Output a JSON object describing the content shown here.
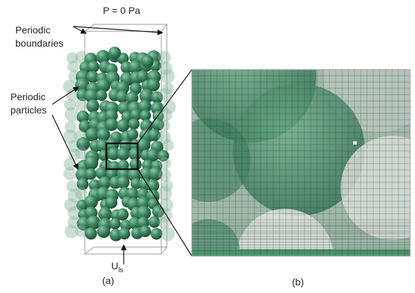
{
  "labels": {
    "pressure": "P = 0 Pa",
    "boundaries": [
      "Periodic",
      "boundaries"
    ],
    "particles": [
      "Periodic",
      "particles"
    ],
    "velocity": {
      "symbol": "U",
      "subscript": "ls"
    },
    "panels": [
      "(a)",
      "(b)"
    ]
  }
}
